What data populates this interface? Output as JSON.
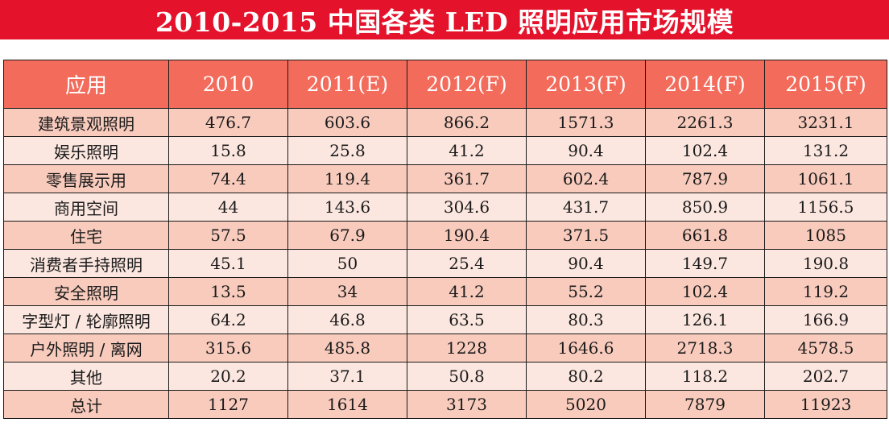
{
  "title": "2010-2015 中国各类 LED 照明应用市场规模",
  "colors": {
    "title_bar": "#e4122b",
    "header": "#f26b5b",
    "row_odd": "#f8cbbd",
    "row_even": "#fce7e0"
  },
  "chart_data": {
    "type": "table",
    "title": "2010-2015 中国各类 LED 照明应用市场规模",
    "columns": [
      "应用",
      "2010",
      "2011(E)",
      "2012(F)",
      "2013(F)",
      "2014(F)",
      "2015(F)"
    ],
    "rows": [
      {
        "label": "建筑景观照明",
        "values": [
          "476.7",
          "603.6",
          "866.2",
          "1571.3",
          "2261.3",
          "3231.1"
        ]
      },
      {
        "label": "娱乐照明",
        "values": [
          "15.8",
          "25.8",
          "41.2",
          "90.4",
          "102.4",
          "131.2"
        ]
      },
      {
        "label": "零售展示用",
        "values": [
          "74.4",
          "119.4",
          "361.7",
          "602.4",
          "787.9",
          "1061.1"
        ]
      },
      {
        "label": "商用空间",
        "values": [
          "44",
          "143.6",
          "304.6",
          "431.7",
          "850.9",
          "1156.5"
        ]
      },
      {
        "label": "住宅",
        "values": [
          "57.5",
          "67.9",
          "190.4",
          "371.5",
          "661.8",
          "1085"
        ]
      },
      {
        "label": "消费者手持照明",
        "values": [
          "45.1",
          "50",
          "25.4",
          "90.4",
          "149.7",
          "190.8"
        ]
      },
      {
        "label": "安全照明",
        "values": [
          "13.5",
          "34",
          "41.2",
          "55.2",
          "102.4",
          "119.2"
        ]
      },
      {
        "label": "字型灯 / 轮廓照明",
        "values": [
          "64.2",
          "46.8",
          "63.5",
          "80.3",
          "126.1",
          "166.9"
        ]
      },
      {
        "label": "户外照明 / 离网",
        "values": [
          "315.6",
          "485.8",
          "1228",
          "1646.6",
          "2718.3",
          "4578.5"
        ]
      },
      {
        "label": "其他",
        "values": [
          "20.2",
          "37.1",
          "50.8",
          "80.2",
          "118.2",
          "202.7"
        ]
      },
      {
        "label": "总计",
        "values": [
          "1127",
          "1614",
          "3173",
          "5020",
          "7879",
          "11923"
        ]
      }
    ]
  }
}
